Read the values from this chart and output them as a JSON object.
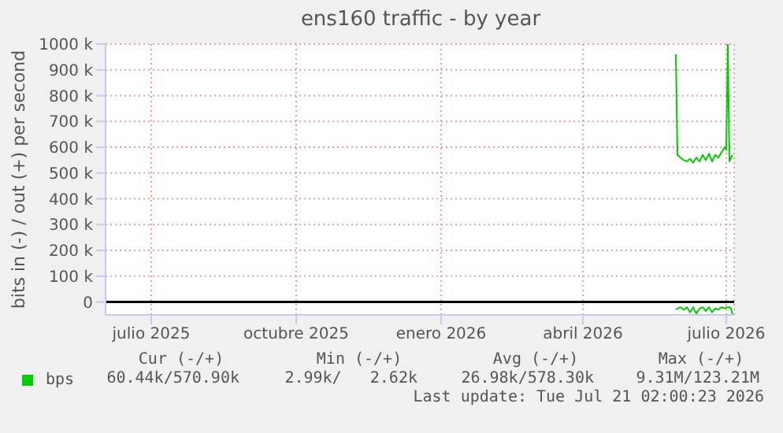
{
  "chart_data": {
    "type": "line",
    "title": "ens160 traffic - by year",
    "ylabel": "bits in (-) / out (+) per second",
    "x": [
      "2026-05-30",
      "2026-05-31",
      "2026-06-02",
      "2026-06-04",
      "2026-06-06",
      "2026-06-08",
      "2026-06-10",
      "2026-06-12",
      "2026-06-14",
      "2026-06-16",
      "2026-06-18",
      "2026-06-20",
      "2026-06-22",
      "2026-06-24",
      "2026-06-26",
      "2026-06-28",
      "2026-06-30",
      "2026-07-01",
      "2026-07-02",
      "2026-07-03",
      "2026-07-04",
      "2026-07-05"
    ],
    "series": [
      {
        "name": "bps",
        "color": "#00cc00",
        "values": [
          960000,
          570000,
          560000,
          550000,
          545000,
          555000,
          540000,
          560000,
          545000,
          570000,
          550000,
          575000,
          545000,
          570000,
          560000,
          580000,
          600000,
          590000,
          1000000,
          545000,
          560000,
          570000
        ]
      },
      {
        "color": "#00cc00",
        "values": [
          -30000,
          -25000,
          -20000,
          -30000,
          -20000,
          -40000,
          -20000,
          -45000,
          -25000,
          -20000,
          -35000,
          -20000,
          -40000,
          -25000,
          -30000,
          -20000,
          -25000,
          -20000,
          -20000,
          -20000,
          -25000,
          -50000
        ]
      }
    ],
    "xlim": [
      "2025-06-02",
      "2026-07-06"
    ],
    "xticks": [
      {
        "value": "2025-07-01",
        "label": "julio 2025"
      },
      {
        "value": "2025-10-01",
        "label": "octubre 2025"
      },
      {
        "value": "2026-01-01",
        "label": "enero 2026"
      },
      {
        "value": "2026-04-01",
        "label": "abril 2026"
      },
      {
        "value": "2026-07-01",
        "label": "julio 2026"
      }
    ],
    "ylim": [
      -50000,
      1000000
    ],
    "yticks": [
      0,
      {
        "value": 100000,
        "label": "100 k"
      },
      {
        "value": 200000,
        "label": "200 k"
      },
      {
        "value": 300000,
        "label": "300 k"
      },
      {
        "value": 400000,
        "label": "400 k"
      },
      {
        "value": 500000,
        "label": "500 k"
      },
      {
        "value": 600000,
        "label": "600 k"
      },
      {
        "value": 700000,
        "label": "700 k"
      },
      {
        "value": 800000,
        "label": "800 k"
      },
      {
        "value": 900000,
        "label": "900 k"
      },
      {
        "value": 1000000,
        "label": "1000 k"
      }
    ],
    "ref_lines": [
      {
        "axis": "y",
        "value": 0,
        "color": "#000000"
      }
    ],
    "grid": true,
    "legend": "bottom left",
    "marker": "none",
    "line_style": "solid",
    "annotations": [
      "Cur (-/+)",
      "Min (-/+)",
      "Avg (-/+)",
      "Max (-/+)",
      "60.44k/570.90k",
      "2.99k/   2.62k",
      "26.98k/578.30k",
      "9.31M/123.21M",
      "Last update: Tue Jul 21 02:00:23 2026"
    ]
  }
}
